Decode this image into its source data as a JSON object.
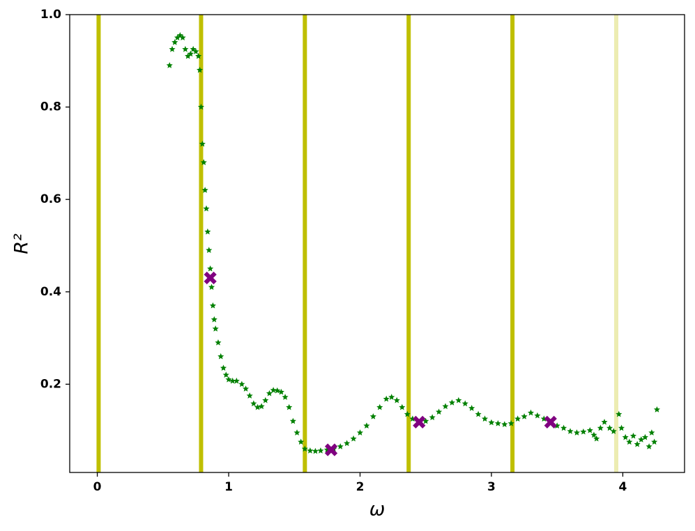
{
  "chart_data": {
    "type": "scatter",
    "xlabel": "ω",
    "ylabel": "R²",
    "xlim": [
      -0.21,
      4.47
    ],
    "ylim": [
      0.009,
      1.0
    ],
    "xticks": [
      0,
      1,
      2,
      3,
      4
    ],
    "yticks": [
      0.2,
      0.4,
      0.6,
      0.8,
      {
        "value": 1,
        "label": "1.0"
      }
    ],
    "vlines": {
      "x": [
        0.01,
        0.79,
        1.58,
        2.37,
        3.16,
        3.95
      ],
      "alpha": [
        1,
        1,
        1,
        1,
        1,
        0.3
      ],
      "color": "#bfbf00"
    },
    "series": [
      {
        "marker": "star",
        "color": "#008000",
        "x": [
          0.55,
          0.57,
          0.59,
          0.61,
          0.63,
          0.65,
          0.67,
          0.69,
          0.71,
          0.73,
          0.75,
          0.77,
          0.78,
          0.79,
          0.8,
          0.81,
          0.82,
          0.83,
          0.84,
          0.85,
          0.86,
          0.87,
          0.88,
          0.89,
          0.9,
          0.92,
          0.94,
          0.96,
          0.98,
          1.0,
          1.03,
          1.06,
          1.1,
          1.13,
          1.16,
          1.19,
          1.22,
          1.25,
          1.28,
          1.31,
          1.34,
          1.37,
          1.4,
          1.43,
          1.46,
          1.49,
          1.52,
          1.55,
          1.58,
          1.62,
          1.66,
          1.7,
          1.75,
          1.8,
          1.85,
          1.9,
          1.95,
          2.0,
          2.05,
          2.1,
          2.15,
          2.2,
          2.24,
          2.28,
          2.32,
          2.36,
          2.4,
          2.45,
          2.5,
          2.55,
          2.6,
          2.65,
          2.7,
          2.75,
          2.8,
          2.85,
          2.9,
          2.95,
          3.0,
          3.05,
          3.1,
          3.15,
          3.2,
          3.25,
          3.3,
          3.35,
          3.4,
          3.45,
          3.5,
          3.55,
          3.6,
          3.65,
          3.7,
          3.75,
          3.78,
          3.8,
          3.83,
          3.86,
          3.9,
          3.93,
          3.97,
          3.99,
          4.02,
          4.05,
          4.08,
          4.11,
          4.14,
          4.17,
          4.2,
          4.22,
          4.24,
          4.26
        ],
        "values": [
          0.89,
          0.925,
          0.94,
          0.95,
          0.955,
          0.95,
          0.925,
          0.91,
          0.915,
          0.925,
          0.92,
          0.91,
          0.88,
          0.8,
          0.72,
          0.68,
          0.62,
          0.58,
          0.53,
          0.49,
          0.45,
          0.41,
          0.37,
          0.34,
          0.32,
          0.29,
          0.26,
          0.235,
          0.22,
          0.21,
          0.207,
          0.207,
          0.2,
          0.19,
          0.175,
          0.158,
          0.15,
          0.152,
          0.165,
          0.18,
          0.187,
          0.186,
          0.183,
          0.172,
          0.15,
          0.12,
          0.095,
          0.075,
          0.06,
          0.056,
          0.055,
          0.056,
          0.058,
          0.06,
          0.065,
          0.072,
          0.082,
          0.095,
          0.11,
          0.13,
          0.15,
          0.168,
          0.172,
          0.165,
          0.15,
          0.135,
          0.125,
          0.117,
          0.12,
          0.128,
          0.14,
          0.152,
          0.16,
          0.165,
          0.158,
          0.148,
          0.135,
          0.125,
          0.117,
          0.115,
          0.113,
          0.115,
          0.125,
          0.13,
          0.138,
          0.132,
          0.125,
          0.117,
          0.11,
          0.105,
          0.098,
          0.095,
          0.097,
          0.1,
          0.09,
          0.082,
          0.105,
          0.118,
          0.105,
          0.098,
          0.135,
          0.105,
          0.085,
          0.075,
          0.088,
          0.07,
          0.08,
          0.085,
          0.065,
          0.095,
          0.075,
          0.145
        ]
      },
      {
        "marker": "x",
        "color": "#800080",
        "x": [
          0.86,
          1.78,
          2.45,
          3.45
        ],
        "values": [
          0.43,
          0.058,
          0.118,
          0.118
        ]
      }
    ]
  }
}
